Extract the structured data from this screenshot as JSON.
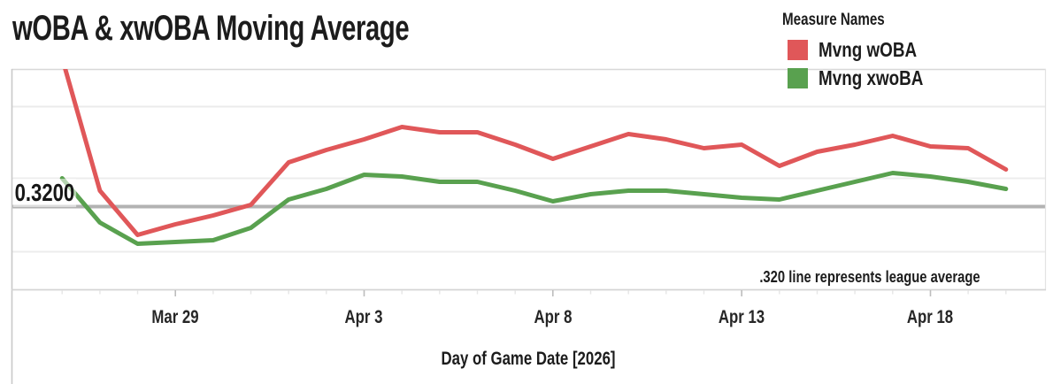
{
  "header": {
    "title": "wOBA & xwOBA Moving Average"
  },
  "legend": {
    "title": "Measure Names",
    "position": "top-right"
  },
  "reference_line": {
    "label": "0.3200",
    "value": 0.32,
    "note": ".320 line represents league average",
    "color": "#b2b2b2"
  },
  "x_axis": {
    "title": "Day of Game Date [2026]",
    "tick_labels": [
      "Mar 29",
      "Apr 3",
      "Apr 8",
      "Apr 13",
      "Apr 18"
    ]
  },
  "chart_data": {
    "type": "line",
    "title": "wOBA & xwOBA Moving Average",
    "xlabel": "Day of Game Date [2026]",
    "ylabel": "",
    "legend_title": "Measure Names",
    "legend_position": "top-right",
    "grid": "horizontal-faint",
    "year_shown": "2026",
    "categories": [
      "Mar 26",
      "Mar 27",
      "Mar 28",
      "Mar 29",
      "Mar 30",
      "Mar 31",
      "Apr 1",
      "Apr 2",
      "Apr 3",
      "Apr 4",
      "Apr 5",
      "Apr 6",
      "Apr 7",
      "Apr 8",
      "Apr 9",
      "Apr 10",
      "Apr 11",
      "Apr 12",
      "Apr 13",
      "Apr 14",
      "Apr 15",
      "Apr 16",
      "Apr 17",
      "Apr 18",
      "Apr 19",
      "Apr 20"
    ],
    "x_tick_labels": [
      "Mar 29",
      "Apr 3",
      "Apr 8",
      "Apr 13",
      "Apr 18"
    ],
    "x_tick_indices": [
      3,
      8,
      13,
      18,
      23
    ],
    "y_axis_visible_range": [
      0.273,
      0.398
    ],
    "reference_line": {
      "value": 0.32,
      "label": "0.3200",
      "note": ".320 line represents league average"
    },
    "series": [
      {
        "name": "Mvng wOBA",
        "color": "#e05759",
        "values": [
          0.404,
          0.329,
          0.304,
          0.31,
          0.315,
          0.321,
          0.345,
          0.352,
          0.358,
          0.365,
          0.362,
          0.362,
          0.355,
          0.347,
          0.354,
          0.361,
          0.358,
          0.353,
          0.355,
          0.343,
          0.351,
          0.355,
          0.36,
          0.354,
          0.353,
          0.341
        ]
      },
      {
        "name": "Mvng xwoBA",
        "color": "#59a14f",
        "values": [
          0.336,
          0.311,
          0.299,
          0.3,
          0.301,
          0.308,
          0.324,
          0.33,
          0.338,
          0.337,
          0.334,
          0.334,
          0.329,
          0.323,
          0.327,
          0.329,
          0.329,
          0.327,
          0.325,
          0.324,
          0.329,
          0.334,
          0.339,
          0.337,
          0.334,
          0.33
        ]
      }
    ]
  }
}
